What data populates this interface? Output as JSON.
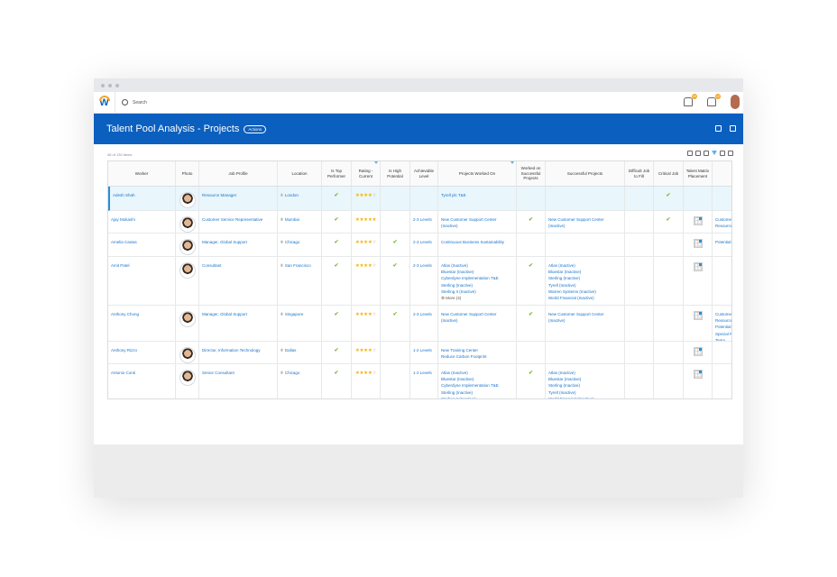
{
  "nav": {
    "search_placeholder": "Search",
    "notif_badge": "99",
    "inbox_badge": "12"
  },
  "banner": {
    "title": "Talent Pool Analysis - Projects",
    "actions": "Actions"
  },
  "count": "46 of 130 items",
  "columns": [
    "Worker",
    "Photo",
    "Job Profile",
    "Location",
    "Is Top Performer",
    "Rating - Current",
    "Is High Potential",
    "Achievable Level",
    "Projects Worked On",
    "Worked on Successful Projects",
    "Successful Projects",
    "Difficult Job to Fill",
    "Critical Job",
    "Talent Matrix Placement",
    ""
  ],
  "colors": {
    "brand": "#0b5fbf",
    "link": "#1a73c9",
    "check": "#7cb82f",
    "star": "#f5b400"
  },
  "rows": [
    {
      "worker": "Adesh Shah",
      "job": "Resource Manager",
      "location": "London",
      "top": true,
      "rating": 4,
      "high": false,
      "level": "",
      "projects": [
        "Tyrell plc T&E"
      ],
      "more": "",
      "worked": false,
      "successful": [],
      "difficult": false,
      "critical": true,
      "matrix": false,
      "extra": [],
      "selected": true
    },
    {
      "worker": "Ajay Mokashi",
      "job": "Customer Service Representative",
      "location": "Mumbai",
      "top": true,
      "rating": 5,
      "high": false,
      "level": "2-3 Levels",
      "projects": [
        "New Customer Support Center (Inactive)"
      ],
      "more": "",
      "worked": true,
      "successful": [
        "New Customer Support Center (Inactive)"
      ],
      "difficult": false,
      "critical": true,
      "matrix": true,
      "extra": [
        "Customer Resource"
      ]
    },
    {
      "worker": "Amelia Casias",
      "job": "Manager, Global Support",
      "location": "Chicago",
      "top": true,
      "rating": 4,
      "high": true,
      "level": "2-3 Levels",
      "projects": [
        "Continuous Business Sustainability"
      ],
      "more": "",
      "worked": false,
      "successful": [],
      "difficult": false,
      "critical": false,
      "matrix": true,
      "extra": [
        "Potential I"
      ]
    },
    {
      "worker": "Amit Patel",
      "job": "Consultant",
      "location": "San Francisco",
      "top": true,
      "rating": 4,
      "high": true,
      "level": "2-3 Levels",
      "projects": [
        "Atlas (Inactive)",
        "Bluestar (Inactive)",
        "Cyberdyne Implementation T&E",
        "Sterling (Inactive)",
        "Sterling II (Inactive)"
      ],
      "more": "More (4)",
      "worked": true,
      "successful": [
        "Atlas (Inactive)",
        "Bluestar (Inactive)",
        "Sterling (Inactive)",
        "Tyrell (Inactive)",
        "Warren Systems (Inactive)",
        "World Financial (Inactive)"
      ],
      "difficult": false,
      "critical": false,
      "matrix": true,
      "extra": []
    },
    {
      "worker": "Anthony Chong",
      "job": "Manager, Global Support",
      "location": "Singapore",
      "top": true,
      "rating": 4,
      "high": true,
      "level": "2-3 Levels",
      "projects": [
        "New Customer Support Center (Inactive)"
      ],
      "more": "",
      "worked": true,
      "successful": [
        "New Customer Support Center (Inactive)"
      ],
      "difficult": false,
      "critical": false,
      "matrix": true,
      "extra": [
        "Customer Resource",
        "Potential I",
        "Special Pr Team"
      ]
    },
    {
      "worker": "Anthony Rizzo",
      "job": "Director, Information Technology",
      "location": "Dallas",
      "top": true,
      "rating": 4,
      "high": false,
      "level": "1-2 Levels",
      "projects": [
        "New Training Center",
        "Reduce Carbon Footprint"
      ],
      "more": "",
      "worked": false,
      "successful": [],
      "difficult": false,
      "critical": false,
      "matrix": true,
      "extra": []
    },
    {
      "worker": "Antonio Conti",
      "job": "Senior Consultant",
      "location": "Chicago",
      "top": true,
      "rating": 4,
      "high": false,
      "level": "1-2 Levels",
      "projects": [
        "Atlas (Inactive)",
        "Bluestar (Inactive)",
        "Cyberdyne Implementation T&E",
        "Sterling (Inactive)",
        "Sterling II (Inactive)"
      ],
      "more": "",
      "worked": true,
      "successful": [
        "Atlas (Inactive)",
        "Bluestar (Inactive)",
        "Sterling (Inactive)",
        "Tyrell (Inactive)",
        "World Financial (Inactive)"
      ],
      "difficult": false,
      "critical": false,
      "matrix": true,
      "extra": []
    }
  ]
}
